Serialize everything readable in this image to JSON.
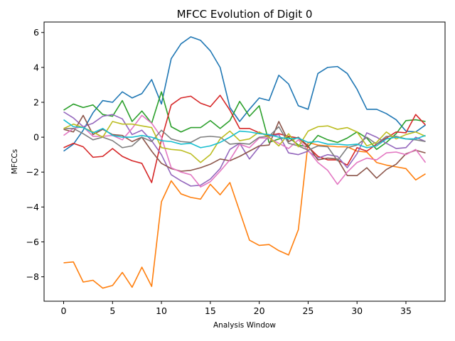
{
  "chart_data": {
    "type": "line",
    "title": "MFCC Evolution of Digit 0",
    "xlabel": "Analysis Window",
    "ylabel": "MFCCs",
    "xlim": [
      -2,
      39
    ],
    "ylim": [
      -9.4,
      6.6
    ],
    "xticks": [
      0,
      5,
      10,
      15,
      20,
      25,
      30,
      35
    ],
    "yticks": [
      -8,
      -6,
      -4,
      -2,
      0,
      2,
      4,
      6
    ],
    "grid": false,
    "legend": "none",
    "x": [
      0,
      1,
      2,
      3,
      4,
      5,
      6,
      7,
      8,
      9,
      10,
      11,
      12,
      13,
      14,
      15,
      16,
      17,
      18,
      19,
      20,
      21,
      22,
      23,
      24,
      25,
      26,
      27,
      28,
      29,
      30,
      31,
      32,
      33,
      34,
      35,
      36,
      37
    ],
    "series": [
      {
        "color": "#1f77b4",
        "values": [
          -0.8,
          -0.4,
          0.4,
          1.4,
          2.1,
          2.0,
          2.6,
          2.25,
          2.5,
          3.3,
          1.9,
          4.5,
          5.35,
          5.75,
          5.55,
          4.95,
          4.0,
          1.7,
          0.9,
          1.6,
          2.25,
          2.1,
          3.55,
          3.05,
          1.8,
          1.6,
          3.65,
          4.0,
          4.05,
          3.65,
          2.75,
          1.6,
          1.6,
          1.35,
          1.0,
          0.35,
          0.3,
          0.7
        ]
      },
      {
        "color": "#ff7f0e",
        "values": [
          -7.2,
          -7.15,
          -8.3,
          -8.2,
          -8.65,
          -8.5,
          -7.75,
          -8.6,
          -7.45,
          -8.55,
          -3.7,
          -2.5,
          -3.25,
          -3.45,
          -3.55,
          -2.7,
          -3.3,
          -2.6,
          -4.25,
          -5.9,
          -6.2,
          -6.15,
          -6.5,
          -6.75,
          -5.3,
          -0.3,
          -0.45,
          -0.5,
          -0.55,
          -0.55,
          -0.8,
          -0.85,
          -1.45,
          -1.6,
          -1.7,
          -1.8,
          -2.45,
          -2.1
        ]
      },
      {
        "color": "#2ca02c",
        "values": [
          1.55,
          1.9,
          1.7,
          1.85,
          1.3,
          1.2,
          2.1,
          0.9,
          1.5,
          0.8,
          2.6,
          0.6,
          0.3,
          0.55,
          0.55,
          0.95,
          0.5,
          0.95,
          2.05,
          1.2,
          1.8,
          -0.3,
          -0.1,
          0.0,
          -0.45,
          -0.55,
          0.1,
          -0.15,
          -0.3,
          -0.05,
          0.3,
          -0.05,
          -0.7,
          -0.3,
          0.2,
          0.95,
          1.0,
          0.9
        ]
      },
      {
        "color": "#d62728",
        "values": [
          -0.6,
          -0.35,
          -0.55,
          -1.15,
          -1.1,
          -0.65,
          -1.1,
          -1.35,
          -1.5,
          -2.6,
          -0.15,
          1.85,
          2.25,
          2.35,
          1.95,
          1.75,
          2.4,
          1.55,
          0.5,
          0.5,
          0.25,
          0.1,
          0.2,
          0.05,
          -0.05,
          -0.55,
          -1.1,
          -1.3,
          -1.3,
          -1.6,
          -0.6,
          -0.8,
          -0.4,
          -0.05,
          0.3,
          0.25,
          1.3,
          0.7
        ]
      },
      {
        "color": "#9467bd",
        "values": [
          1.45,
          1.1,
          0.6,
          0.8,
          1.2,
          1.3,
          1.05,
          0.15,
          0.4,
          -0.2,
          -1.0,
          -2.15,
          -2.5,
          -2.8,
          -2.75,
          -2.4,
          -1.8,
          -0.7,
          -0.35,
          -1.25,
          -0.55,
          0.05,
          0.15,
          -0.9,
          -1.0,
          -0.8,
          -1.2,
          -1.0,
          -1.1,
          -1.75,
          -0.95,
          0.25,
          0.0,
          -0.35,
          -0.65,
          -0.6,
          0.0,
          -0.25
        ]
      },
      {
        "color": "#8c564b",
        "values": [
          0.45,
          0.3,
          1.25,
          0.15,
          0.45,
          0.15,
          0.1,
          -0.25,
          0.0,
          -0.8,
          -1.5,
          -1.8,
          -1.95,
          -1.9,
          -1.75,
          -1.55,
          -1.25,
          -1.35,
          -1.1,
          -0.8,
          -0.5,
          -0.45,
          0.9,
          -0.25,
          0.0,
          -0.5,
          -1.3,
          -1.2,
          -1.25,
          -2.2,
          -2.2,
          -1.75,
          -2.35,
          -1.85,
          -1.55,
          -0.95,
          -0.75,
          -0.9
        ]
      },
      {
        "color": "#e377c2",
        "values": [
          0.1,
          0.5,
          0.6,
          0.05,
          0.05,
          0.1,
          -0.15,
          0.5,
          1.25,
          0.8,
          0.0,
          -1.75,
          -2.0,
          -2.15,
          -2.85,
          -2.55,
          -1.95,
          -1.3,
          -0.4,
          -0.6,
          -0.05,
          -0.05,
          -0.35,
          -0.65,
          -0.15,
          -0.75,
          -1.45,
          -1.9,
          -2.7,
          -2.0,
          -1.45,
          -1.2,
          -1.3,
          -0.9,
          -0.85,
          -1.0,
          -0.7,
          -1.45
        ]
      },
      {
        "color": "#7f7f7f",
        "values": [
          0.5,
          0.5,
          0.2,
          -0.15,
          0.0,
          -0.2,
          -0.6,
          -0.5,
          0.0,
          -0.25,
          0.4,
          -0.1,
          -0.25,
          -0.3,
          0.0,
          0.05,
          0.0,
          -0.4,
          -0.35,
          -0.4,
          0.0,
          0.05,
          0.6,
          -0.35,
          -0.5,
          -0.75,
          -0.5,
          -0.55,
          -1.35,
          -0.6,
          -0.45,
          0.0,
          -0.4,
          0.05,
          0.05,
          -0.1,
          -0.15,
          -0.25
        ]
      },
      {
        "color": "#bcbd22",
        "values": [
          0.5,
          0.75,
          0.55,
          0.3,
          0.0,
          0.9,
          0.75,
          0.75,
          0.65,
          0.55,
          -0.6,
          -0.7,
          -0.75,
          -0.95,
          -1.45,
          -1.0,
          -0.1,
          0.35,
          -0.2,
          -0.1,
          0.3,
          0.0,
          -0.5,
          0.2,
          -0.55,
          0.35,
          0.6,
          0.65,
          0.45,
          0.55,
          0.3,
          -0.5,
          -0.3,
          0.3,
          -0.1,
          0.15,
          0.3,
          0.05
        ]
      },
      {
        "color": "#17becf",
        "values": [
          1.0,
          0.6,
          0.55,
          0.25,
          0.5,
          0.1,
          0.0,
          0.0,
          0.1,
          0.0,
          -0.2,
          -0.25,
          -0.4,
          -0.35,
          -0.6,
          -0.5,
          -0.3,
          0.0,
          0.35,
          0.3,
          0.2,
          0.15,
          0.0,
          -0.1,
          -0.05,
          -0.3,
          -0.25,
          -0.4,
          -0.4,
          -0.45,
          -0.4,
          -0.6,
          -0.5,
          -0.1,
          0.0,
          -0.1,
          -0.1,
          0.1
        ]
      }
    ]
  }
}
